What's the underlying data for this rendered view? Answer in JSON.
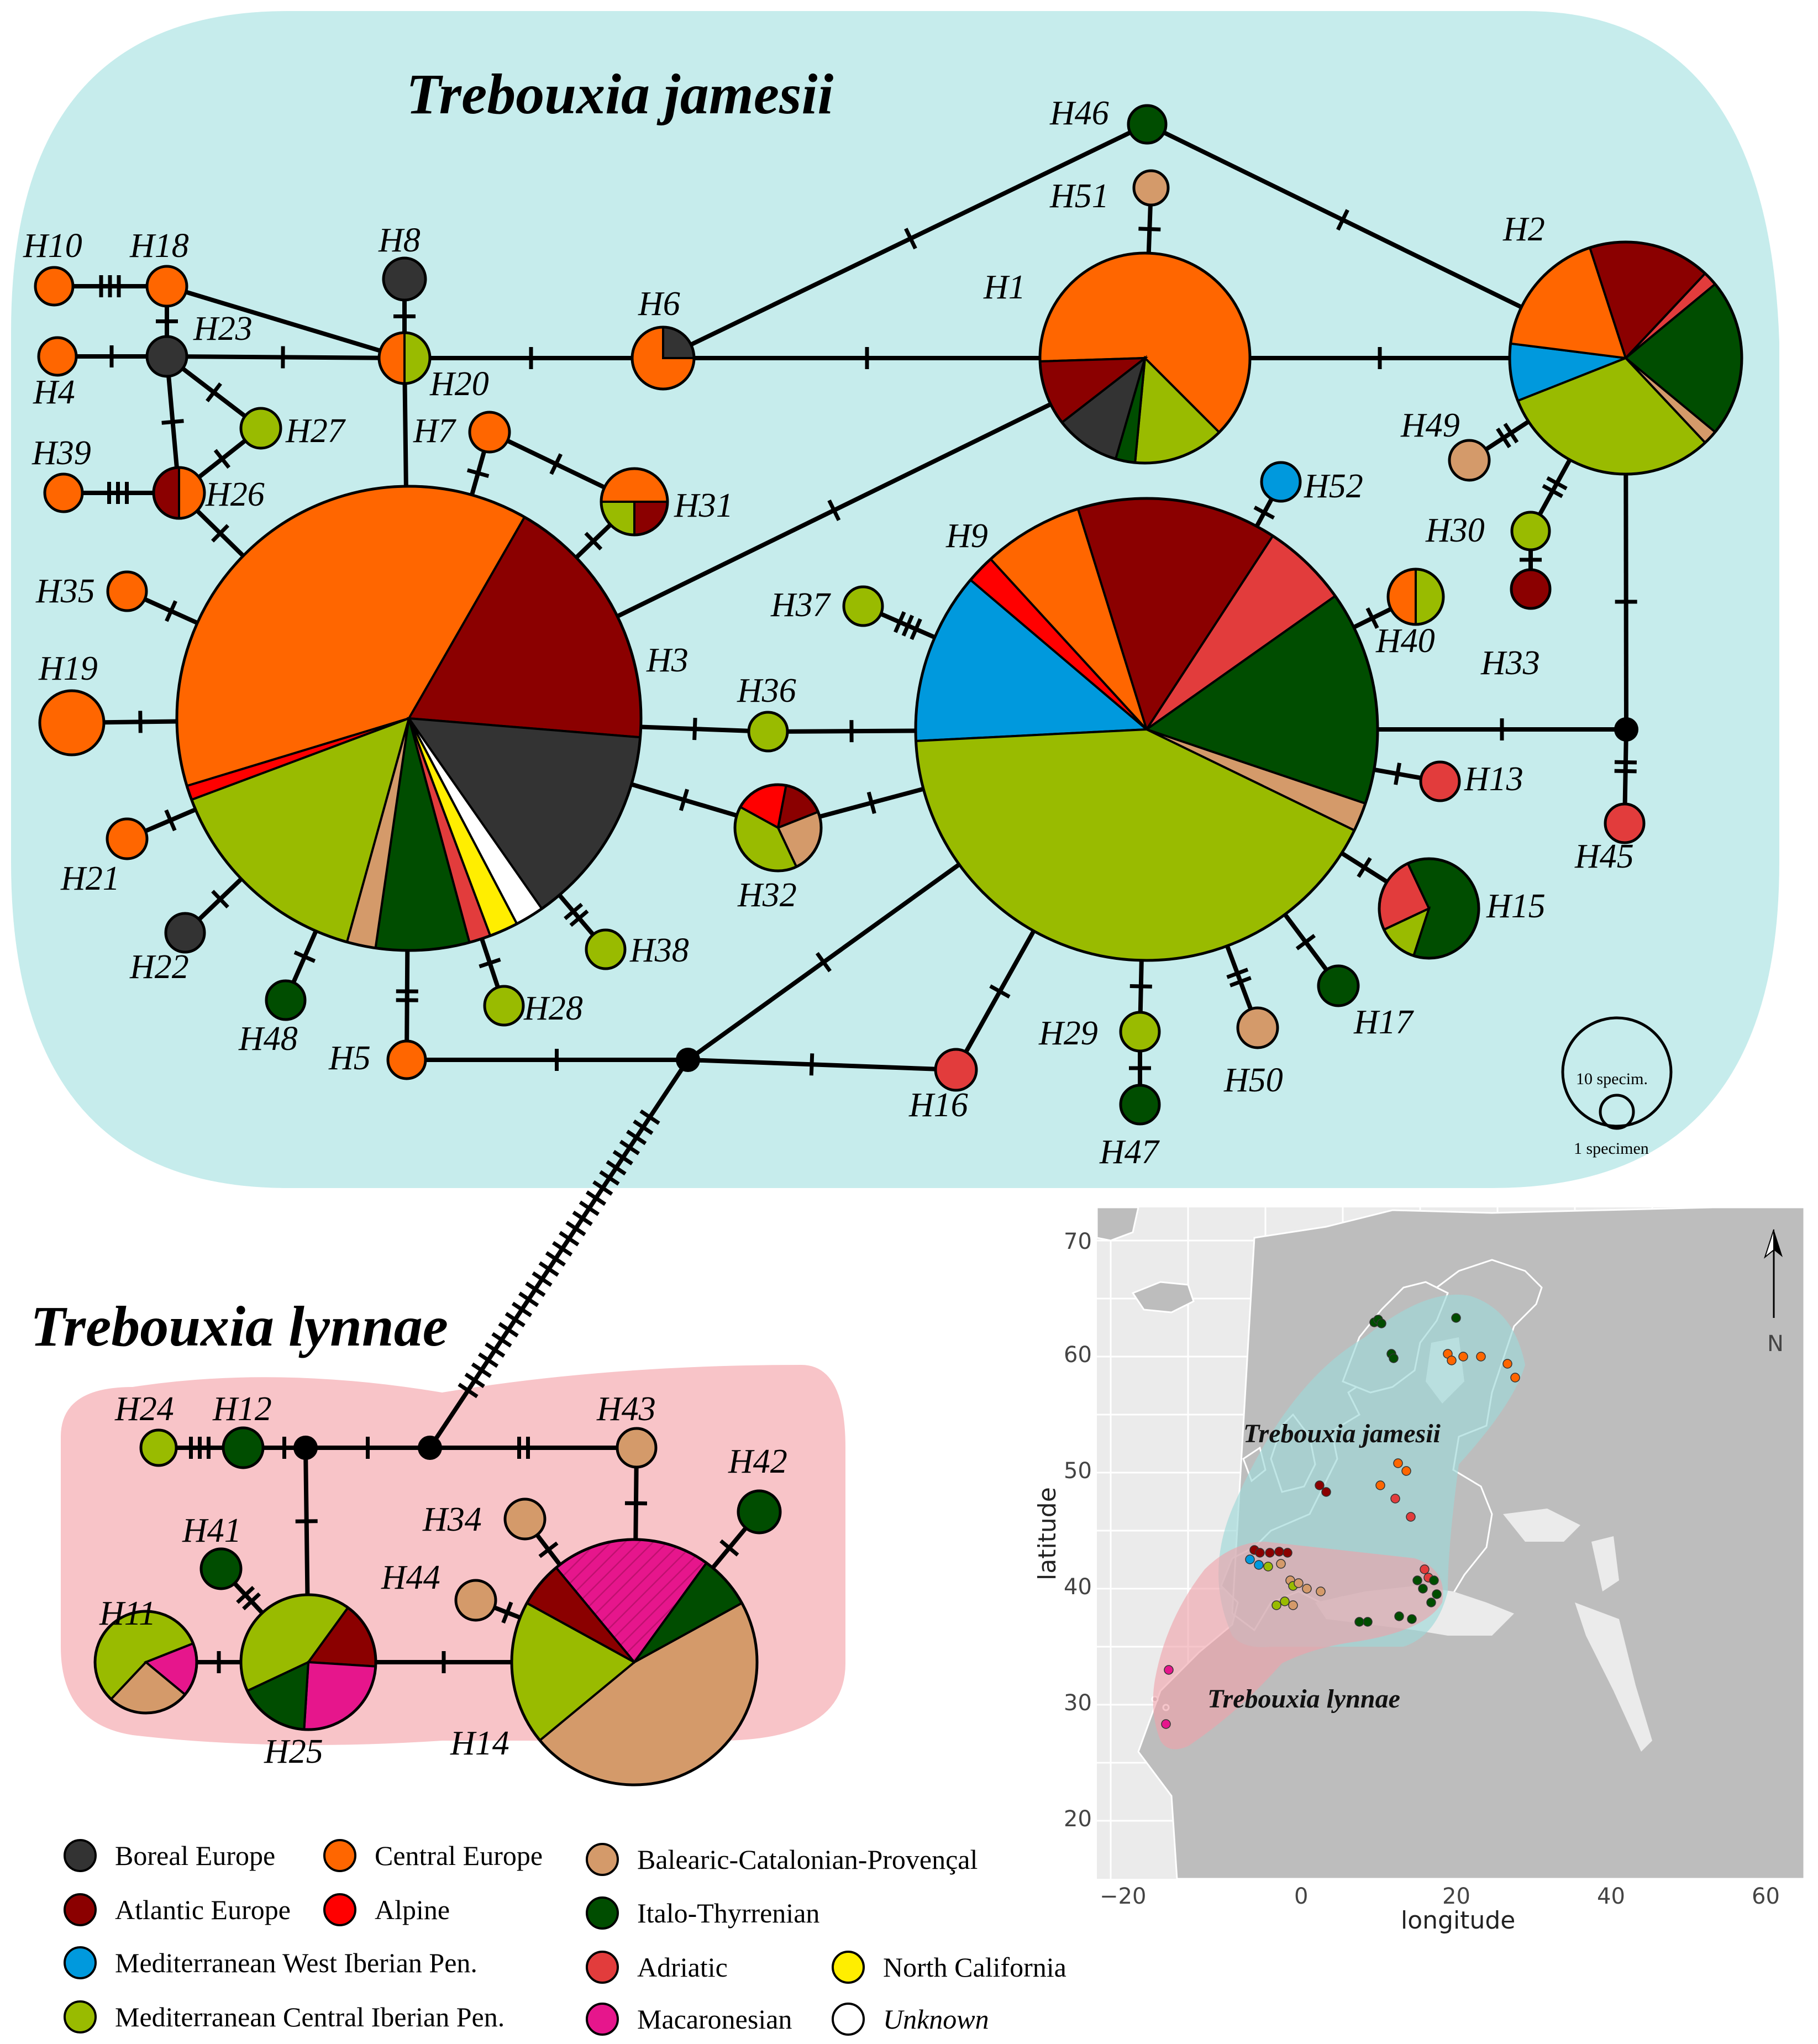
{
  "titles": {
    "jamesii": "Trebouxia jamesii",
    "lynnae": "Trebouxia lynnae"
  },
  "colors": {
    "boreal": "#333333",
    "atlantic": "#8B0000",
    "medwest": "#0099DD",
    "medcentral": "#99BB00",
    "central": "#FF6600",
    "alpine": "#FF0000",
    "balearic": "#D49A6A",
    "italo": "#004D00",
    "adriatic": "#E23C3C",
    "macaronesian": "#E6168C",
    "ncal": "#FFEE00",
    "unknown": "#FFFFFF"
  },
  "legend": [
    {
      "label": "Boreal Europe",
      "color": "#333333"
    },
    {
      "label": "Atlantic Europe",
      "color": "#8B0000"
    },
    {
      "label": "Mediterranean West Iberian Pen.",
      "color": "#0099DD"
    },
    {
      "label": "Mediterranean Central Iberian Pen.",
      "color": "#99BB00"
    },
    {
      "label": "Central Europe",
      "color": "#FF6600"
    },
    {
      "label": "Alpine",
      "color": "#FF0000"
    },
    {
      "label": "Balearic-Catalonian-Provençal",
      "color": "#D49A6A"
    },
    {
      "label": "Italo-Thyrrenian",
      "color": "#004D00"
    },
    {
      "label": "Adriatic",
      "color": "#E23C3C"
    },
    {
      "label": "Macaronesian",
      "color": "#E6168C"
    },
    {
      "label": "North California",
      "color": "#FFEE00"
    },
    {
      "label": "Unknown",
      "color": "#FFFFFF"
    }
  ],
  "scale": {
    "big": "10 specim.",
    "small": "1 specimen"
  },
  "map": {
    "xlabel": "longitude",
    "ylabel": "latitude",
    "north": "N",
    "label_jamesii": "Trebouxia jamesii",
    "label_lynnae": "Trebouxia lynnae",
    "xticks": [
      "−20",
      "0",
      "20",
      "40",
      "60"
    ],
    "yticks": [
      "70",
      "60",
      "50",
      "40",
      "30",
      "20"
    ]
  },
  "haplotypes": [
    {
      "id": "H1",
      "label": "H1",
      "size": "large",
      "composition": [
        {
          "region": "central",
          "pct": 63
        },
        {
          "region": "medcentral",
          "pct": 14
        },
        {
          "region": "italo",
          "pct": 3
        },
        {
          "region": "boreal",
          "pct": 10
        },
        {
          "region": "atlantic",
          "pct": 10
        }
      ]
    },
    {
      "id": "H2",
      "label": "H2",
      "size": "large",
      "composition": [
        {
          "region": "medwest",
          "pct": 8
        },
        {
          "region": "central",
          "pct": 18
        },
        {
          "region": "atlantic",
          "pct": 17
        },
        {
          "region": "adriatic",
          "pct": 2
        },
        {
          "region": "italo",
          "pct": 22
        },
        {
          "region": "balearic",
          "pct": 2
        },
        {
          "region": "medcentral",
          "pct": 31
        }
      ]
    },
    {
      "id": "H3",
      "label": "H3",
      "size": "very large",
      "composition": [
        {
          "region": "central",
          "pct": 38
        },
        {
          "region": "atlantic",
          "pct": 18
        },
        {
          "region": "boreal",
          "pct": 14
        },
        {
          "region": "unknown",
          "pct": 2
        },
        {
          "region": "ncal",
          "pct": 2
        },
        {
          "region": "adriatic",
          "pct": 1.5
        },
        {
          "region": "italo",
          "pct": 6.5
        },
        {
          "region": "balearic",
          "pct": 2
        },
        {
          "region": "medcentral",
          "pct": 15
        },
        {
          "region": "alpine",
          "pct": 1
        }
      ]
    },
    {
      "id": "H9",
      "label": "H9",
      "size": "very large",
      "composition": [
        {
          "region": "medwest",
          "pct": 12
        },
        {
          "region": "alpine",
          "pct": 2
        },
        {
          "region": "central",
          "pct": 7
        },
        {
          "region": "atlantic",
          "pct": 14
        },
        {
          "region": "adriatic",
          "pct": 6
        },
        {
          "region": "italo",
          "pct": 15
        },
        {
          "region": "balearic",
          "pct": 2
        },
        {
          "region": "medcentral",
          "pct": 42
        }
      ]
    },
    {
      "id": "H14",
      "label": "H14",
      "size": "large",
      "composition": [
        {
          "region": "balearic",
          "pct": 47
        },
        {
          "region": "medcentral",
          "pct": 19
        },
        {
          "region": "atlantic",
          "pct": 6
        },
        {
          "region": "macaronesian",
          "pct": 21
        },
        {
          "region": "italo",
          "pct": 7
        }
      ]
    },
    {
      "id": "H25",
      "label": "H25",
      "composition": [
        {
          "region": "medcentral",
          "pct": 42
        },
        {
          "region": "atlantic",
          "pct": 16
        },
        {
          "region": "macaronesian",
          "pct": 25
        },
        {
          "region": "italo",
          "pct": 17
        }
      ]
    },
    {
      "id": "H11",
      "label": "H11",
      "composition": [
        {
          "region": "medcentral",
          "pct": 57
        },
        {
          "region": "macaronesian",
          "pct": 17
        },
        {
          "region": "balearic",
          "pct": 26
        }
      ]
    },
    {
      "id": "H15",
      "label": "H15",
      "composition": [
        {
          "region": "italo",
          "pct": 62
        },
        {
          "region": "medcentral",
          "pct": 13
        },
        {
          "region": "adriatic",
          "pct": 25
        }
      ]
    },
    {
      "id": "H32",
      "label": "H32",
      "composition": [
        {
          "region": "alpine",
          "pct": 20
        },
        {
          "region": "atlantic",
          "pct": 16
        },
        {
          "region": "balearic",
          "pct": 24
        },
        {
          "region": "medcentral",
          "pct": 40
        }
      ]
    },
    {
      "id": "H31",
      "label": "H31",
      "composition": [
        {
          "region": "central",
          "pct": 50
        },
        {
          "region": "atlantic",
          "pct": 25
        },
        {
          "region": "medcentral",
          "pct": 25
        }
      ]
    },
    {
      "id": "H6",
      "label": "H6",
      "composition": [
        {
          "region": "central",
          "pct": 75
        },
        {
          "region": "boreal",
          "pct": 25
        }
      ]
    },
    {
      "id": "H20",
      "label": "H20",
      "composition": [
        {
          "region": "central",
          "pct": 50
        },
        {
          "region": "medcentral",
          "pct": 50
        }
      ]
    },
    {
      "id": "H26",
      "label": "H26",
      "composition": [
        {
          "region": "atlantic",
          "pct": 50
        },
        {
          "region": "central",
          "pct": 50
        }
      ]
    },
    {
      "id": "H40",
      "label": "H40",
      "composition": [
        {
          "region": "central",
          "pct": 50
        },
        {
          "region": "medcentral",
          "pct": 50
        }
      ]
    },
    {
      "id": "H46",
      "label": "H46",
      "region": "italo"
    },
    {
      "id": "H51",
      "label": "H51",
      "region": "balearic"
    },
    {
      "id": "H8",
      "label": "H8",
      "region": "boreal"
    },
    {
      "id": "H10",
      "label": "H10",
      "region": "central"
    },
    {
      "id": "H18",
      "label": "H18",
      "region": "central"
    },
    {
      "id": "H4",
      "label": "H4",
      "region": "central"
    },
    {
      "id": "H23",
      "label": "H23",
      "region": "boreal"
    },
    {
      "id": "H27",
      "label": "H27",
      "region": "medcentral"
    },
    {
      "id": "H39",
      "label": "H39",
      "region": "central"
    },
    {
      "id": "H7",
      "label": "H7",
      "region": "central"
    },
    {
      "id": "H35",
      "label": "H35",
      "region": "central"
    },
    {
      "id": "H19",
      "label": "H19",
      "region": "central"
    },
    {
      "id": "H21",
      "label": "H21",
      "region": "central"
    },
    {
      "id": "H22",
      "label": "H22",
      "region": "boreal"
    },
    {
      "id": "H48",
      "label": "H48",
      "region": "italo"
    },
    {
      "id": "H5",
      "label": "H5",
      "region": "central"
    },
    {
      "id": "H28",
      "label": "H28",
      "region": "medcentral"
    },
    {
      "id": "H38",
      "label": "H38",
      "region": "medcentral"
    },
    {
      "id": "H36",
      "label": "H36",
      "region": "medcentral"
    },
    {
      "id": "H37",
      "label": "H37",
      "region": "medcentral"
    },
    {
      "id": "H52",
      "label": "H52",
      "region": "medwest"
    },
    {
      "id": "H49",
      "label": "H49",
      "region": "balearic"
    },
    {
      "id": "H30",
      "label": "H30",
      "region": "medcentral"
    },
    {
      "id": "H33",
      "label": "H33",
      "region": "atlantic"
    },
    {
      "id": "H13",
      "label": "H13",
      "region": "adriatic"
    },
    {
      "id": "H45",
      "label": "H45",
      "region": "adriatic"
    },
    {
      "id": "H17",
      "label": "H17",
      "region": "italo"
    },
    {
      "id": "H50",
      "label": "H50",
      "region": "balearic"
    },
    {
      "id": "H29",
      "label": "H29",
      "region": "medcentral"
    },
    {
      "id": "H47",
      "label": "H47",
      "region": "italo"
    },
    {
      "id": "H16",
      "label": "H16",
      "region": "adriatic"
    },
    {
      "id": "H24",
      "label": "H24",
      "region": "medcentral"
    },
    {
      "id": "H12",
      "label": "H12",
      "region": "italo"
    },
    {
      "id": "H43",
      "label": "H43",
      "region": "balearic"
    },
    {
      "id": "H42",
      "label": "H42",
      "region": "italo"
    },
    {
      "id": "H41",
      "label": "H41",
      "region": "italo"
    },
    {
      "id": "H34",
      "label": "H34",
      "region": "balearic"
    },
    {
      "id": "H44",
      "label": "H44",
      "region": "balearic"
    }
  ]
}
